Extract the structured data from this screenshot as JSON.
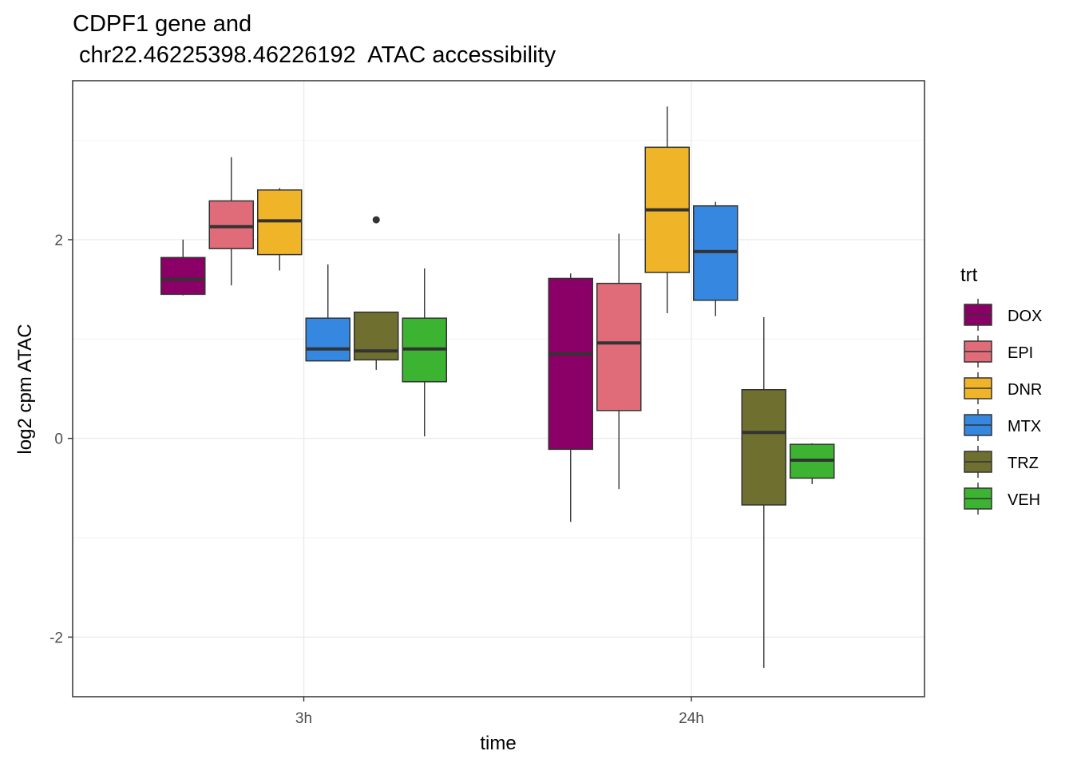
{
  "chart_data": {
    "type": "boxplot",
    "title_lines": [
      "CDPF1  gene and",
      " chr22.46225398.46226192  ATAC accessibility"
    ],
    "xlabel": "time",
    "ylabel": "log2 cpm ATAC",
    "ylim": [
      -2.6,
      3.6
    ],
    "yticks": [
      -2,
      0,
      2
    ],
    "ytick_labels": [
      "-2",
      "0",
      "2"
    ],
    "grid": true,
    "categories": [
      "3h",
      "24h"
    ],
    "legend": {
      "title": "trt",
      "position": "right",
      "entries": [
        {
          "name": "DOX",
          "color": "#8B0066"
        },
        {
          "name": "EPI",
          "color": "#E06C7A"
        },
        {
          "name": "DNR",
          "color": "#F0B428"
        },
        {
          "name": "MTX",
          "color": "#3587E0"
        },
        {
          "name": "TRZ",
          "color": "#6F6F2F"
        },
        {
          "name": "VEH",
          "color": "#3CB432"
        }
      ]
    },
    "series": [
      {
        "name": "DOX",
        "boxes": [
          {
            "category": "3h",
            "min": 1.44,
            "q1": 1.45,
            "median": 1.6,
            "q3": 1.82,
            "max": 2.0,
            "outliers": []
          },
          {
            "category": "24h",
            "min": -0.84,
            "q1": -0.11,
            "median": 0.85,
            "q3": 1.61,
            "max": 1.66,
            "outliers": []
          }
        ]
      },
      {
        "name": "EPI",
        "boxes": [
          {
            "category": "3h",
            "min": 1.54,
            "q1": 1.91,
            "median": 2.13,
            "q3": 2.39,
            "max": 2.83,
            "outliers": []
          },
          {
            "category": "24h",
            "min": -0.51,
            "q1": 0.28,
            "median": 0.96,
            "q3": 1.56,
            "max": 2.06,
            "outliers": []
          }
        ]
      },
      {
        "name": "DNR",
        "boxes": [
          {
            "category": "3h",
            "min": 1.69,
            "q1": 1.85,
            "median": 2.19,
            "q3": 2.5,
            "max": 2.52,
            "outliers": []
          },
          {
            "category": "24h",
            "min": 1.26,
            "q1": 1.67,
            "median": 2.3,
            "q3": 2.93,
            "max": 3.34,
            "outliers": []
          }
        ]
      },
      {
        "name": "MTX",
        "boxes": [
          {
            "category": "3h",
            "min": 0.78,
            "q1": 0.78,
            "median": 0.9,
            "q3": 1.21,
            "max": 1.75,
            "outliers": []
          },
          {
            "category": "24h",
            "min": 1.23,
            "q1": 1.39,
            "median": 1.88,
            "q3": 2.34,
            "max": 2.38,
            "outliers": []
          }
        ]
      },
      {
        "name": "TRZ",
        "boxes": [
          {
            "category": "3h",
            "min": 0.69,
            "q1": 0.79,
            "median": 0.88,
            "q3": 1.27,
            "max": 1.27,
            "outliers": [
              2.2
            ]
          },
          {
            "category": "24h",
            "min": -2.31,
            "q1": -0.67,
            "median": 0.06,
            "q3": 0.49,
            "max": 1.22,
            "outliers": []
          }
        ]
      },
      {
        "name": "VEH",
        "boxes": [
          {
            "category": "3h",
            "min": 0.02,
            "q1": 0.57,
            "median": 0.9,
            "q3": 1.21,
            "max": 1.71,
            "outliers": []
          },
          {
            "category": "24h",
            "min": -0.46,
            "q1": -0.4,
            "median": -0.22,
            "q3": -0.06,
            "max": -0.05,
            "outliers": []
          }
        ]
      }
    ]
  }
}
